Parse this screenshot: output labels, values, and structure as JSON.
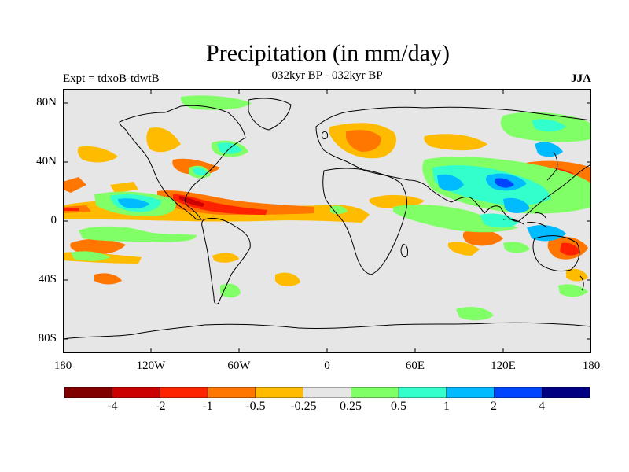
{
  "title": "Precipitation (in mm/day)",
  "subtitle": "032kyr BP - 032kyr BP",
  "experiment": "Expt = tdxoB-tdwtB",
  "season": "JJA",
  "lat_ticks": [
    "80N",
    "40N",
    "0",
    "40S",
    "80S"
  ],
  "lon_ticks": [
    "180",
    "120W",
    "60W",
    "0",
    "60E",
    "120E",
    "180"
  ],
  "colors": {
    "background": "#e6e6e6",
    "palette": [
      "#800000",
      "#cc0000",
      "#ff2200",
      "#ff7700",
      "#ffbb00",
      "#e6e6e6",
      "#80ff66",
      "#33ffcc",
      "#00bbff",
      "#0044ff",
      "#000080"
    ]
  },
  "legend": {
    "labels": [
      "-4",
      "-2",
      "-1",
      "-0.5",
      "-0.25",
      "0.25",
      "0.5",
      "1",
      "2",
      "4"
    ]
  }
}
